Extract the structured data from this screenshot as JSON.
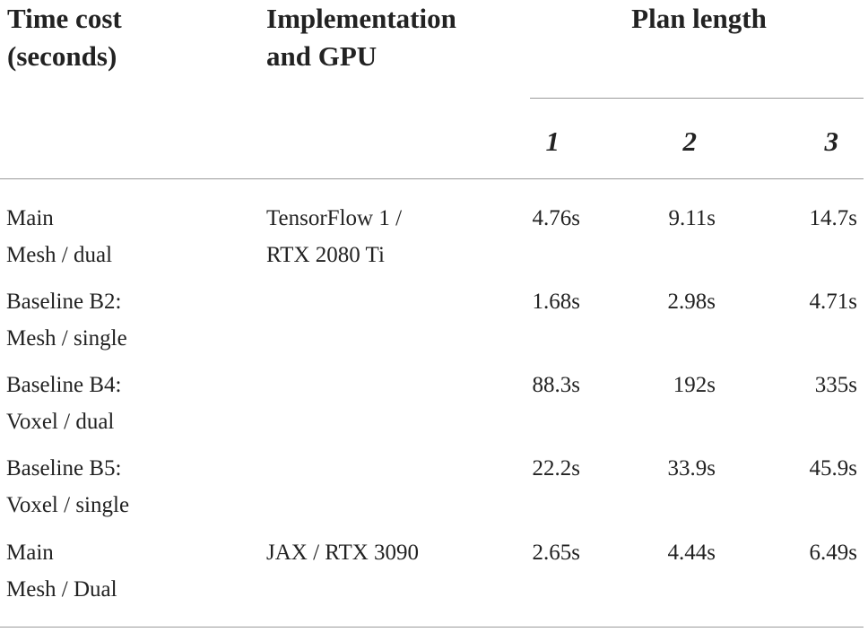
{
  "header": {
    "col1": [
      "Time cost",
      "(seconds)"
    ],
    "col2": [
      "Implementation",
      "and GPU"
    ],
    "span": "Plan length",
    "sub": [
      "1",
      "2",
      "3"
    ]
  },
  "rows": [
    {
      "label": [
        "Main",
        "Mesh / dual"
      ],
      "impl": [
        "TensorFlow 1 /",
        "RTX 2080 Ti"
      ],
      "values": [
        "4.76s",
        "9.11s",
        "14.7s"
      ]
    },
    {
      "label": [
        "Baseline B2:",
        "Mesh / single"
      ],
      "impl": [
        "",
        ""
      ],
      "values": [
        "1.68s",
        "2.98s",
        "4.71s"
      ]
    },
    {
      "label": [
        "Baseline B4:",
        "Voxel / dual"
      ],
      "impl": [
        "",
        ""
      ],
      "values": [
        "88.3s",
        "192s",
        "335s"
      ]
    },
    {
      "label": [
        "Baseline B5:",
        "Voxel / single"
      ],
      "impl": [
        "",
        ""
      ],
      "values": [
        "22.2s",
        "33.9s",
        "45.9s"
      ]
    },
    {
      "label": [
        "Main",
        "Mesh / Dual"
      ],
      "impl": [
        "JAX / RTX 3090",
        ""
      ],
      "values": [
        "2.65s",
        "4.44s",
        "6.49s"
      ]
    }
  ]
}
